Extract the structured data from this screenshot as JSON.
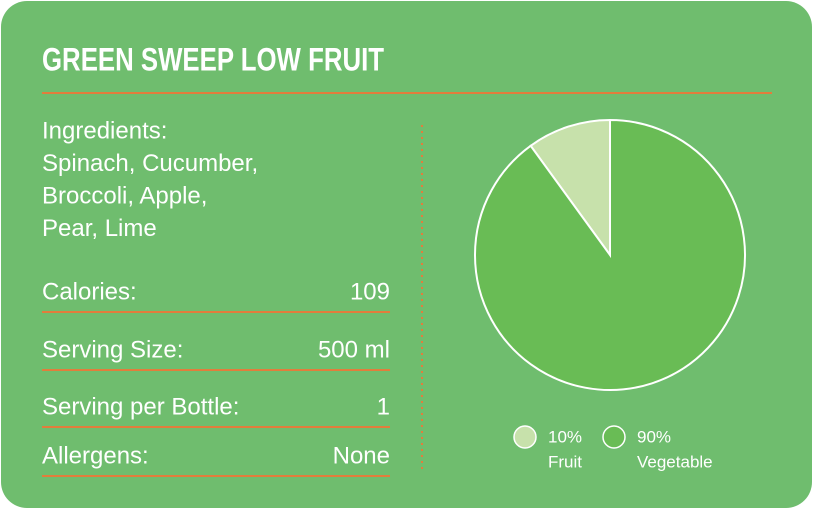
{
  "header": {
    "title": "GREEN SWEEP LOW FRUIT"
  },
  "ingredients": {
    "lines": [
      "Ingredients:",
      "Spinach, Cucumber,",
      "Broccoli, Apple,",
      "Pear, Lime"
    ]
  },
  "facts": {
    "rows": [
      [
        "Calories:",
        "109"
      ],
      [
        "Serving Size:",
        "500 ml"
      ],
      [
        "Serving per Bottle:",
        "1"
      ],
      [
        "Allergens:",
        "None"
      ]
    ]
  },
  "chart_data": {
    "type": "pie",
    "categories": [
      "Fruit",
      "Vegetable"
    ],
    "values": [
      10,
      90
    ],
    "value_labels": [
      "10%",
      "90%"
    ],
    "series_colors": [
      "#c7e1ab",
      "#69bc55"
    ]
  }
}
